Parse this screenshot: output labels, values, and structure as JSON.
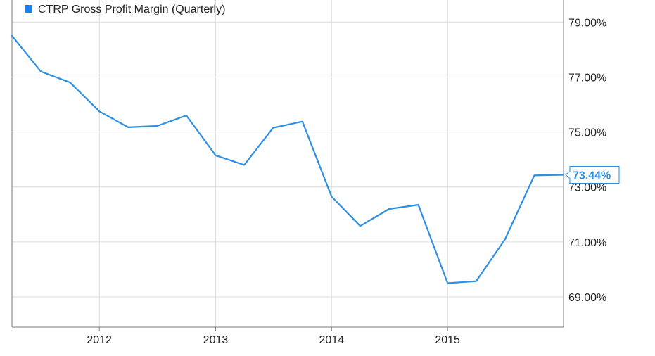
{
  "chart_data": {
    "type": "line",
    "title": "",
    "xlabel": "",
    "ylabel": "",
    "x": [
      "2011-04-01",
      "2011-07-01",
      "2011-10-01",
      "2012-01-01",
      "2012-04-01",
      "2012-07-01",
      "2012-10-01",
      "2013-01-01",
      "2013-04-01",
      "2013-07-01",
      "2013-10-01",
      "2014-01-01",
      "2014-04-01",
      "2014-07-01",
      "2014-10-01",
      "2015-01-01",
      "2015-04-01",
      "2015-07-01",
      "2015-10-01",
      "2016-01-01"
    ],
    "series": [
      {
        "name": "CTRP Gross Profit Margin (Quarterly)",
        "color": "#2d8fe3",
        "values": [
          78.5,
          77.2,
          76.8,
          75.75,
          75.17,
          75.22,
          75.6,
          74.15,
          73.8,
          75.15,
          75.38,
          72.65,
          71.58,
          72.2,
          72.35,
          69.5,
          69.57,
          71.1,
          73.42,
          73.44
        ]
      }
    ],
    "ylim": [
      67.9,
      79.8
    ],
    "yticks": [
      69,
      71,
      73,
      75,
      77,
      79
    ],
    "ytick_labels": [
      "69.00%",
      "71.00%",
      "73.00%",
      "75.00%",
      "77.00%",
      "79.00%"
    ],
    "xtick_labels": [
      {
        "date": "2012-01-01",
        "label": "2012"
      },
      {
        "date": "2013-01-01",
        "label": "2013"
      },
      {
        "date": "2014-01-01",
        "label": "2014"
      },
      {
        "date": "2015-01-01",
        "label": "2015"
      }
    ],
    "last_value_label": "73.44%",
    "legend_position": "top-left",
    "grid": true,
    "accent_color": "#2d8fe3",
    "legend_swatch_color": "#1a7ff0"
  }
}
